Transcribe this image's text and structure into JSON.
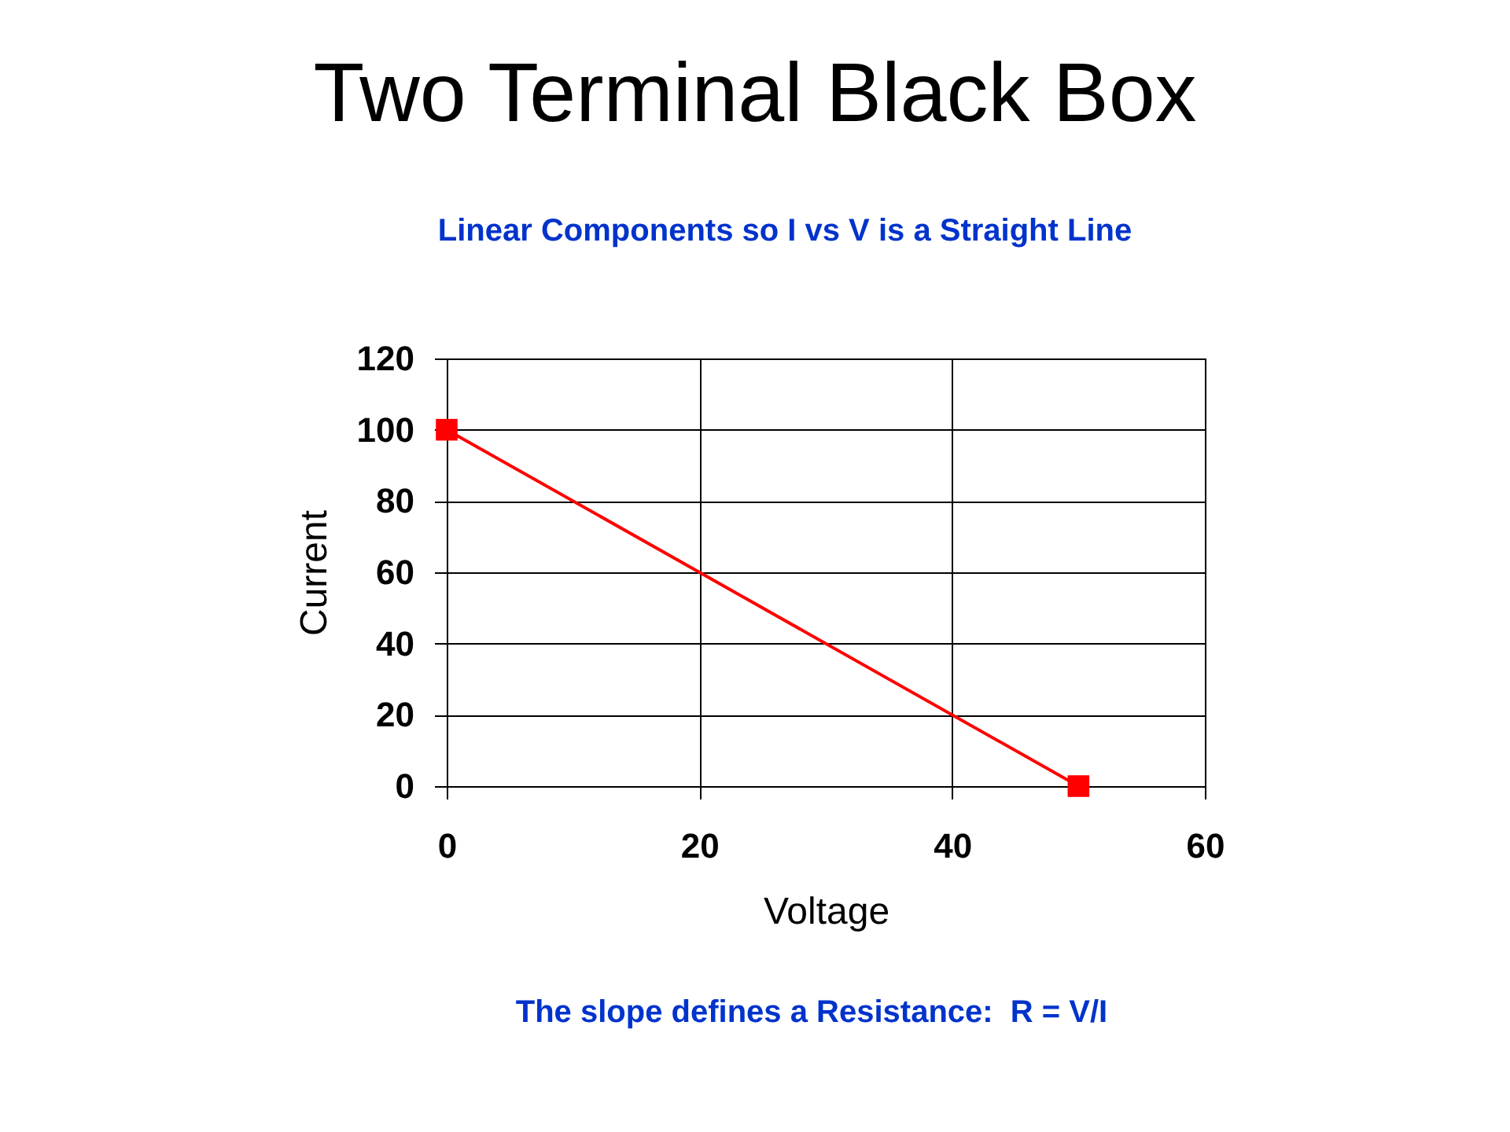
{
  "chart_data": {
    "type": "line",
    "title": "Two Terminal Black Box",
    "subtitle": "Linear Components so I vs V is a Straight Line",
    "xlabel": "Voltage",
    "ylabel": "Current",
    "annotations": [
      "The slope defines a Resistance:  R = V/I"
    ],
    "x": [
      0,
      50
    ],
    "series": [
      {
        "color": "#ff0000",
        "values": [
          100,
          0
        ]
      }
    ],
    "xlim": [
      0,
      60
    ],
    "xticks": [
      0,
      20,
      40,
      60
    ],
    "ylim": [
      0,
      120
    ],
    "yticks": [
      0,
      20,
      40,
      60,
      80,
      100,
      120
    ],
    "grid": true,
    "marker": "square",
    "line_style": "solid"
  }
}
